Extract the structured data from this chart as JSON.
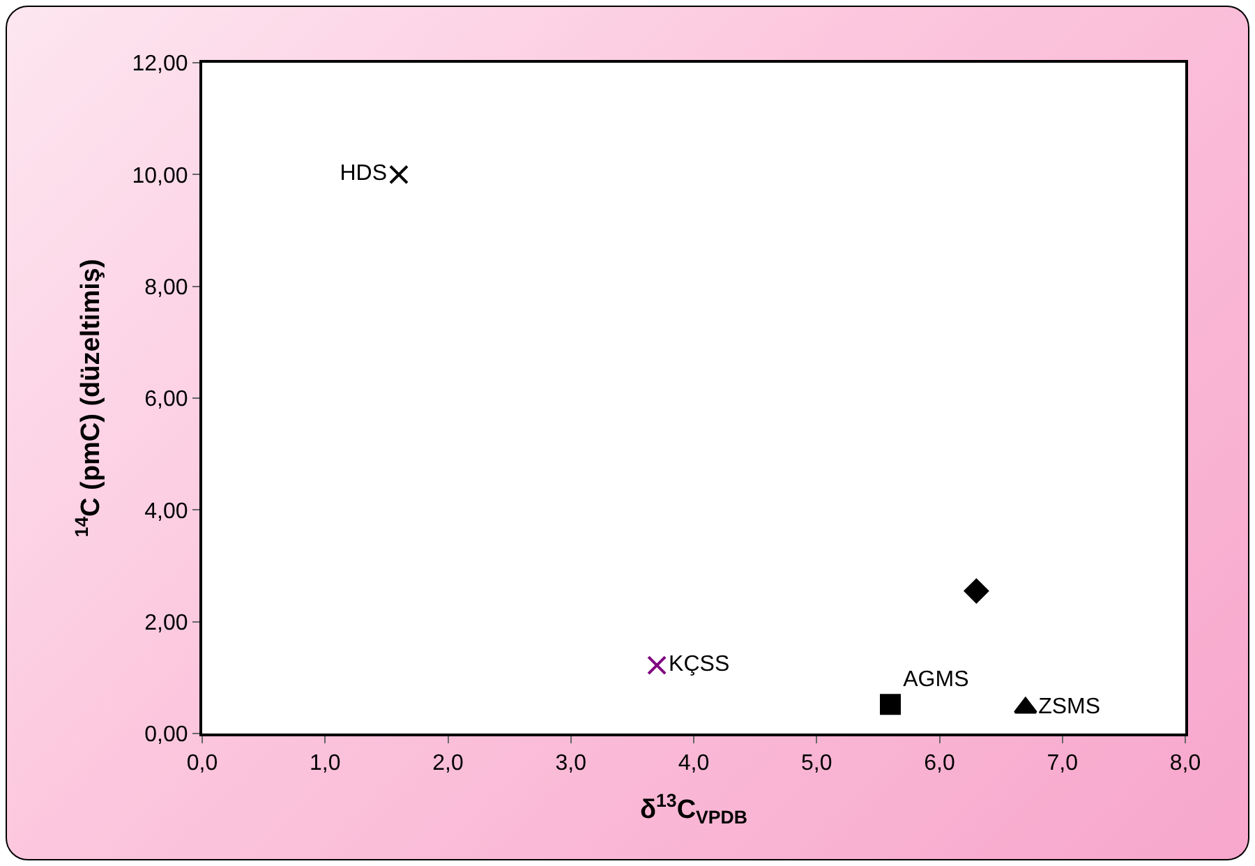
{
  "chart_data": {
    "type": "scatter",
    "xlabel": "δ$^{13}$C$_{VPDB}$",
    "ylabel": "$^{14}$C (pmC) (düzeltimiş)",
    "grid": false,
    "legend": false,
    "xlim": [
      0,
      8
    ],
    "xticks": [
      {
        "value": 0,
        "label": "0,0"
      },
      {
        "value": 1,
        "label": "1,0"
      },
      {
        "value": 2,
        "label": "2,0"
      },
      {
        "value": 3,
        "label": "3,0"
      },
      {
        "value": 4,
        "label": "4,0"
      },
      {
        "value": 5,
        "label": "5,0"
      },
      {
        "value": 6,
        "label": "6,0"
      },
      {
        "value": 7,
        "label": "7,0"
      },
      {
        "value": 8,
        "label": "8,0"
      }
    ],
    "ylim": [
      0,
      12
    ],
    "yticks": [
      {
        "value": 0,
        "label": "0,00"
      },
      {
        "value": 2,
        "label": "2,00"
      },
      {
        "value": 4,
        "label": "4,00"
      },
      {
        "value": 6,
        "label": "6,00"
      },
      {
        "value": 8,
        "label": "8,00"
      },
      {
        "value": 10,
        "label": "10,00"
      },
      {
        "value": 12,
        "label": "12,00"
      }
    ],
    "series": [
      {
        "name": "HDS",
        "color": "#000000",
        "marker": "cross",
        "x": [
          1.6
        ],
        "values": [
          10.0
        ]
      },
      {
        "name": "KÇSS",
        "color": "#800080",
        "marker": "cross",
        "x": [
          3.7
        ],
        "values": [
          1.22
        ]
      },
      {
        "name": "AGMS",
        "color": "#000000",
        "marker": "square",
        "x": [
          5.6
        ],
        "values": [
          0.52
        ]
      },
      {
        "name": "ZSMS",
        "color": "#000000",
        "marker": "triangle",
        "x": [
          6.7
        ],
        "values": [
          0.46
        ]
      },
      {
        "color": "#000000",
        "marker": "diamond",
        "x": [
          6.3
        ],
        "values": [
          2.55
        ]
      }
    ]
  }
}
